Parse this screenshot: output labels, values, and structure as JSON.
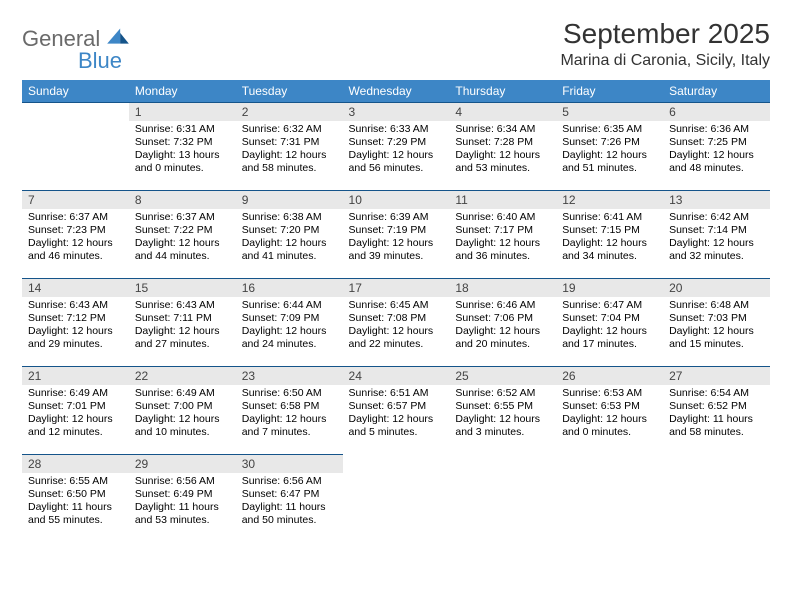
{
  "logo": {
    "general": "General",
    "blue": "Blue"
  },
  "title": "September 2025",
  "location": "Marina di Caronia, Sicily, Italy",
  "header_bg": "#3d86c6",
  "header_fg": "#ffffff",
  "daynum_bg": "#e8e8e8",
  "cell_border": "#15548a",
  "font_size_title": 28,
  "font_size_location": 16,
  "font_size_header": 12,
  "font_size_daynum": 12,
  "font_size_body": 10.5,
  "day_names": [
    "Sunday",
    "Monday",
    "Tuesday",
    "Wednesday",
    "Thursday",
    "Friday",
    "Saturday"
  ],
  "weeks": [
    [
      null,
      {
        "n": "1",
        "sunrise": "Sunrise: 6:31 AM",
        "sunset": "Sunset: 7:32 PM",
        "daylight": "Daylight: 13 hours and 0 minutes."
      },
      {
        "n": "2",
        "sunrise": "Sunrise: 6:32 AM",
        "sunset": "Sunset: 7:31 PM",
        "daylight": "Daylight: 12 hours and 58 minutes."
      },
      {
        "n": "3",
        "sunrise": "Sunrise: 6:33 AM",
        "sunset": "Sunset: 7:29 PM",
        "daylight": "Daylight: 12 hours and 56 minutes."
      },
      {
        "n": "4",
        "sunrise": "Sunrise: 6:34 AM",
        "sunset": "Sunset: 7:28 PM",
        "daylight": "Daylight: 12 hours and 53 minutes."
      },
      {
        "n": "5",
        "sunrise": "Sunrise: 6:35 AM",
        "sunset": "Sunset: 7:26 PM",
        "daylight": "Daylight: 12 hours and 51 minutes."
      },
      {
        "n": "6",
        "sunrise": "Sunrise: 6:36 AM",
        "sunset": "Sunset: 7:25 PM",
        "daylight": "Daylight: 12 hours and 48 minutes."
      }
    ],
    [
      {
        "n": "7",
        "sunrise": "Sunrise: 6:37 AM",
        "sunset": "Sunset: 7:23 PM",
        "daylight": "Daylight: 12 hours and 46 minutes."
      },
      {
        "n": "8",
        "sunrise": "Sunrise: 6:37 AM",
        "sunset": "Sunset: 7:22 PM",
        "daylight": "Daylight: 12 hours and 44 minutes."
      },
      {
        "n": "9",
        "sunrise": "Sunrise: 6:38 AM",
        "sunset": "Sunset: 7:20 PM",
        "daylight": "Daylight: 12 hours and 41 minutes."
      },
      {
        "n": "10",
        "sunrise": "Sunrise: 6:39 AM",
        "sunset": "Sunset: 7:19 PM",
        "daylight": "Daylight: 12 hours and 39 minutes."
      },
      {
        "n": "11",
        "sunrise": "Sunrise: 6:40 AM",
        "sunset": "Sunset: 7:17 PM",
        "daylight": "Daylight: 12 hours and 36 minutes."
      },
      {
        "n": "12",
        "sunrise": "Sunrise: 6:41 AM",
        "sunset": "Sunset: 7:15 PM",
        "daylight": "Daylight: 12 hours and 34 minutes."
      },
      {
        "n": "13",
        "sunrise": "Sunrise: 6:42 AM",
        "sunset": "Sunset: 7:14 PM",
        "daylight": "Daylight: 12 hours and 32 minutes."
      }
    ],
    [
      {
        "n": "14",
        "sunrise": "Sunrise: 6:43 AM",
        "sunset": "Sunset: 7:12 PM",
        "daylight": "Daylight: 12 hours and 29 minutes."
      },
      {
        "n": "15",
        "sunrise": "Sunrise: 6:43 AM",
        "sunset": "Sunset: 7:11 PM",
        "daylight": "Daylight: 12 hours and 27 minutes."
      },
      {
        "n": "16",
        "sunrise": "Sunrise: 6:44 AM",
        "sunset": "Sunset: 7:09 PM",
        "daylight": "Daylight: 12 hours and 24 minutes."
      },
      {
        "n": "17",
        "sunrise": "Sunrise: 6:45 AM",
        "sunset": "Sunset: 7:08 PM",
        "daylight": "Daylight: 12 hours and 22 minutes."
      },
      {
        "n": "18",
        "sunrise": "Sunrise: 6:46 AM",
        "sunset": "Sunset: 7:06 PM",
        "daylight": "Daylight: 12 hours and 20 minutes."
      },
      {
        "n": "19",
        "sunrise": "Sunrise: 6:47 AM",
        "sunset": "Sunset: 7:04 PM",
        "daylight": "Daylight: 12 hours and 17 minutes."
      },
      {
        "n": "20",
        "sunrise": "Sunrise: 6:48 AM",
        "sunset": "Sunset: 7:03 PM",
        "daylight": "Daylight: 12 hours and 15 minutes."
      }
    ],
    [
      {
        "n": "21",
        "sunrise": "Sunrise: 6:49 AM",
        "sunset": "Sunset: 7:01 PM",
        "daylight": "Daylight: 12 hours and 12 minutes."
      },
      {
        "n": "22",
        "sunrise": "Sunrise: 6:49 AM",
        "sunset": "Sunset: 7:00 PM",
        "daylight": "Daylight: 12 hours and 10 minutes."
      },
      {
        "n": "23",
        "sunrise": "Sunrise: 6:50 AM",
        "sunset": "Sunset: 6:58 PM",
        "daylight": "Daylight: 12 hours and 7 minutes."
      },
      {
        "n": "24",
        "sunrise": "Sunrise: 6:51 AM",
        "sunset": "Sunset: 6:57 PM",
        "daylight": "Daylight: 12 hours and 5 minutes."
      },
      {
        "n": "25",
        "sunrise": "Sunrise: 6:52 AM",
        "sunset": "Sunset: 6:55 PM",
        "daylight": "Daylight: 12 hours and 3 minutes."
      },
      {
        "n": "26",
        "sunrise": "Sunrise: 6:53 AM",
        "sunset": "Sunset: 6:53 PM",
        "daylight": "Daylight: 12 hours and 0 minutes."
      },
      {
        "n": "27",
        "sunrise": "Sunrise: 6:54 AM",
        "sunset": "Sunset: 6:52 PM",
        "daylight": "Daylight: 11 hours and 58 minutes."
      }
    ],
    [
      {
        "n": "28",
        "sunrise": "Sunrise: 6:55 AM",
        "sunset": "Sunset: 6:50 PM",
        "daylight": "Daylight: 11 hours and 55 minutes."
      },
      {
        "n": "29",
        "sunrise": "Sunrise: 6:56 AM",
        "sunset": "Sunset: 6:49 PM",
        "daylight": "Daylight: 11 hours and 53 minutes."
      },
      {
        "n": "30",
        "sunrise": "Sunrise: 6:56 AM",
        "sunset": "Sunset: 6:47 PM",
        "daylight": "Daylight: 11 hours and 50 minutes."
      },
      null,
      null,
      null,
      null
    ]
  ]
}
